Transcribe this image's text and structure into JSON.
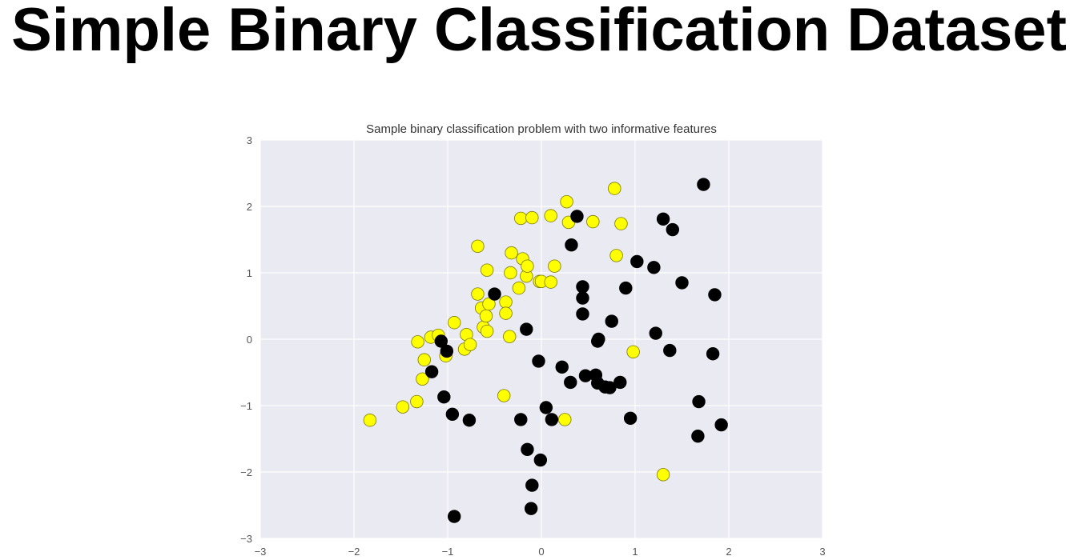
{
  "slide": {
    "title": "Simple Binary Classification Dataset"
  },
  "chart_data": {
    "type": "scatter",
    "title": "Sample binary classification problem with two informative features",
    "xlabel": "",
    "ylabel": "",
    "xlim": [
      -3,
      3
    ],
    "ylim": [
      -3,
      3
    ],
    "xticks": [
      -3,
      -2,
      -1,
      0,
      1,
      2,
      3
    ],
    "yticks": [
      -3,
      -2,
      -1,
      0,
      1,
      2,
      3
    ],
    "xtick_labels": [
      "−3",
      "−2",
      "−1",
      "0",
      "1",
      "2",
      "3"
    ],
    "ytick_labels": [
      "−3",
      "−2",
      "−1",
      "0",
      "1",
      "2",
      "3"
    ],
    "grid": true,
    "legend": "none",
    "background_color": "#eaeaf2",
    "grid_color": "#ffffff",
    "series": [
      {
        "color": "#ffff00",
        "edge_color": "#7a7a00",
        "points": [
          [
            -1.83,
            -1.22
          ],
          [
            -1.48,
            -1.02
          ],
          [
            -1.33,
            -0.94
          ],
          [
            -1.27,
            -0.6
          ],
          [
            -1.25,
            -0.31
          ],
          [
            -1.32,
            -0.04
          ],
          [
            -1.18,
            0.03
          ],
          [
            -1.1,
            0.06
          ],
          [
            -1.02,
            -0.25
          ],
          [
            -0.93,
            0.25
          ],
          [
            -0.82,
            -0.15
          ],
          [
            -0.8,
            0.07
          ],
          [
            -0.76,
            -0.08
          ],
          [
            -0.68,
            1.4
          ],
          [
            -0.68,
            0.68
          ],
          [
            -0.64,
            0.47
          ],
          [
            -0.62,
            0.18
          ],
          [
            -0.58,
            1.04
          ],
          [
            -0.59,
            0.35
          ],
          [
            -0.56,
            0.53
          ],
          [
            -0.38,
            0.56
          ],
          [
            -0.38,
            0.39
          ],
          [
            -0.34,
            0.04
          ],
          [
            -0.33,
            1.0
          ],
          [
            -0.32,
            1.3
          ],
          [
            -0.24,
            0.77
          ],
          [
            -0.22,
            1.82
          ],
          [
            -0.2,
            1.21
          ],
          [
            -0.16,
            0.95
          ],
          [
            -0.15,
            1.1
          ],
          [
            -0.1,
            1.83
          ],
          [
            -0.02,
            0.87
          ],
          [
            0.0,
            0.87
          ],
          [
            0.1,
            1.86
          ],
          [
            0.1,
            0.86
          ],
          [
            0.14,
            1.1
          ],
          [
            0.27,
            2.07
          ],
          [
            0.29,
            1.76
          ],
          [
            0.55,
            1.77
          ],
          [
            0.78,
            2.27
          ],
          [
            0.8,
            1.26
          ],
          [
            0.85,
            1.74
          ],
          [
            0.98,
            -0.19
          ],
          [
            1.3,
            -2.04
          ],
          [
            -0.4,
            -0.85
          ],
          [
            0.25,
            -1.21
          ],
          [
            -0.58,
            0.12
          ]
        ]
      },
      {
        "color": "#000000",
        "edge_color": "#000000",
        "points": [
          [
            -1.17,
            -0.49
          ],
          [
            -1.07,
            -0.03
          ],
          [
            -1.01,
            -0.18
          ],
          [
            -1.04,
            -0.87
          ],
          [
            -0.95,
            -1.13
          ],
          [
            -0.77,
            -1.22
          ],
          [
            -0.93,
            -2.67
          ],
          [
            -0.5,
            0.68
          ],
          [
            -0.22,
            -1.21
          ],
          [
            -0.16,
            0.15
          ],
          [
            -0.15,
            -1.66
          ],
          [
            -0.1,
            -2.2
          ],
          [
            -0.11,
            -2.55
          ],
          [
            -0.03,
            -0.33
          ],
          [
            -0.01,
            -1.82
          ],
          [
            0.05,
            -1.03
          ],
          [
            0.11,
            -1.21
          ],
          [
            0.22,
            -0.42
          ],
          [
            0.31,
            -0.65
          ],
          [
            0.32,
            1.42
          ],
          [
            0.38,
            1.85
          ],
          [
            0.44,
            0.79
          ],
          [
            0.44,
            0.62
          ],
          [
            0.44,
            0.38
          ],
          [
            0.47,
            -0.55
          ],
          [
            0.58,
            -0.54
          ],
          [
            0.6,
            -0.03
          ],
          [
            0.61,
            0.0
          ],
          [
            0.6,
            -0.66
          ],
          [
            0.68,
            -0.72
          ],
          [
            0.73,
            -0.73
          ],
          [
            0.75,
            0.27
          ],
          [
            0.84,
            -0.65
          ],
          [
            0.9,
            0.77
          ],
          [
            0.95,
            -1.19
          ],
          [
            1.02,
            1.17
          ],
          [
            1.2,
            1.08
          ],
          [
            1.22,
            0.09
          ],
          [
            1.3,
            1.81
          ],
          [
            1.37,
            -0.17
          ],
          [
            1.4,
            1.65
          ],
          [
            1.5,
            0.85
          ],
          [
            1.67,
            -1.46
          ],
          [
            1.68,
            -0.94
          ],
          [
            1.73,
            2.33
          ],
          [
            1.83,
            -0.22
          ],
          [
            1.85,
            0.67
          ],
          [
            1.92,
            -1.29
          ]
        ]
      }
    ]
  }
}
